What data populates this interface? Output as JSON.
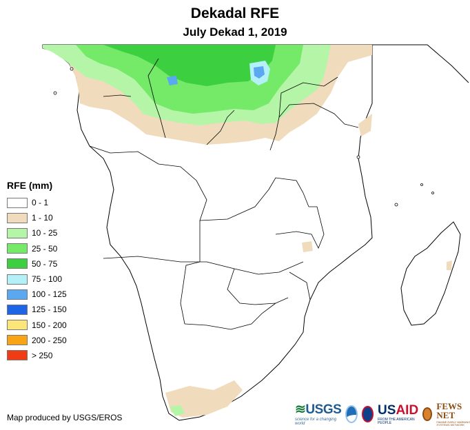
{
  "title": "Dekadal RFE",
  "subtitle": "July Dekad 1, 2019",
  "legend": {
    "title": "RFE (mm)",
    "items": [
      {
        "label": "0 - 1",
        "color": "#ffffff"
      },
      {
        "label": "1 - 10",
        "color": "#f0dcbc"
      },
      {
        "label": "10 - 25",
        "color": "#b4f5a8"
      },
      {
        "label": "25 - 50",
        "color": "#74ea68"
      },
      {
        "label": "50 - 75",
        "color": "#3cd040"
      },
      {
        "label": "75 - 100",
        "color": "#b4f0f8"
      },
      {
        "label": "100 - 125",
        "color": "#5aa8f0"
      },
      {
        "label": "125 - 150",
        "color": "#1e64e6"
      },
      {
        "label": "150 - 200",
        "color": "#fce67a"
      },
      {
        "label": "200 - 250",
        "color": "#f8a414"
      },
      {
        "label": "> 250",
        "color": "#f03c14"
      }
    ]
  },
  "credit": "Map produced by USGS/EROS",
  "logos": {
    "usgs": {
      "name": "USGS",
      "tagline": "science for a changing world"
    },
    "usaid": {
      "name_prefix": "US",
      "name_suffix": "AID",
      "tagline": "FROM THE AMERICAN PEOPLE"
    },
    "fews": {
      "name": "FEWS NET",
      "tagline": "FAMINE EARLY WARNING SYSTEMS NETWORK"
    }
  }
}
